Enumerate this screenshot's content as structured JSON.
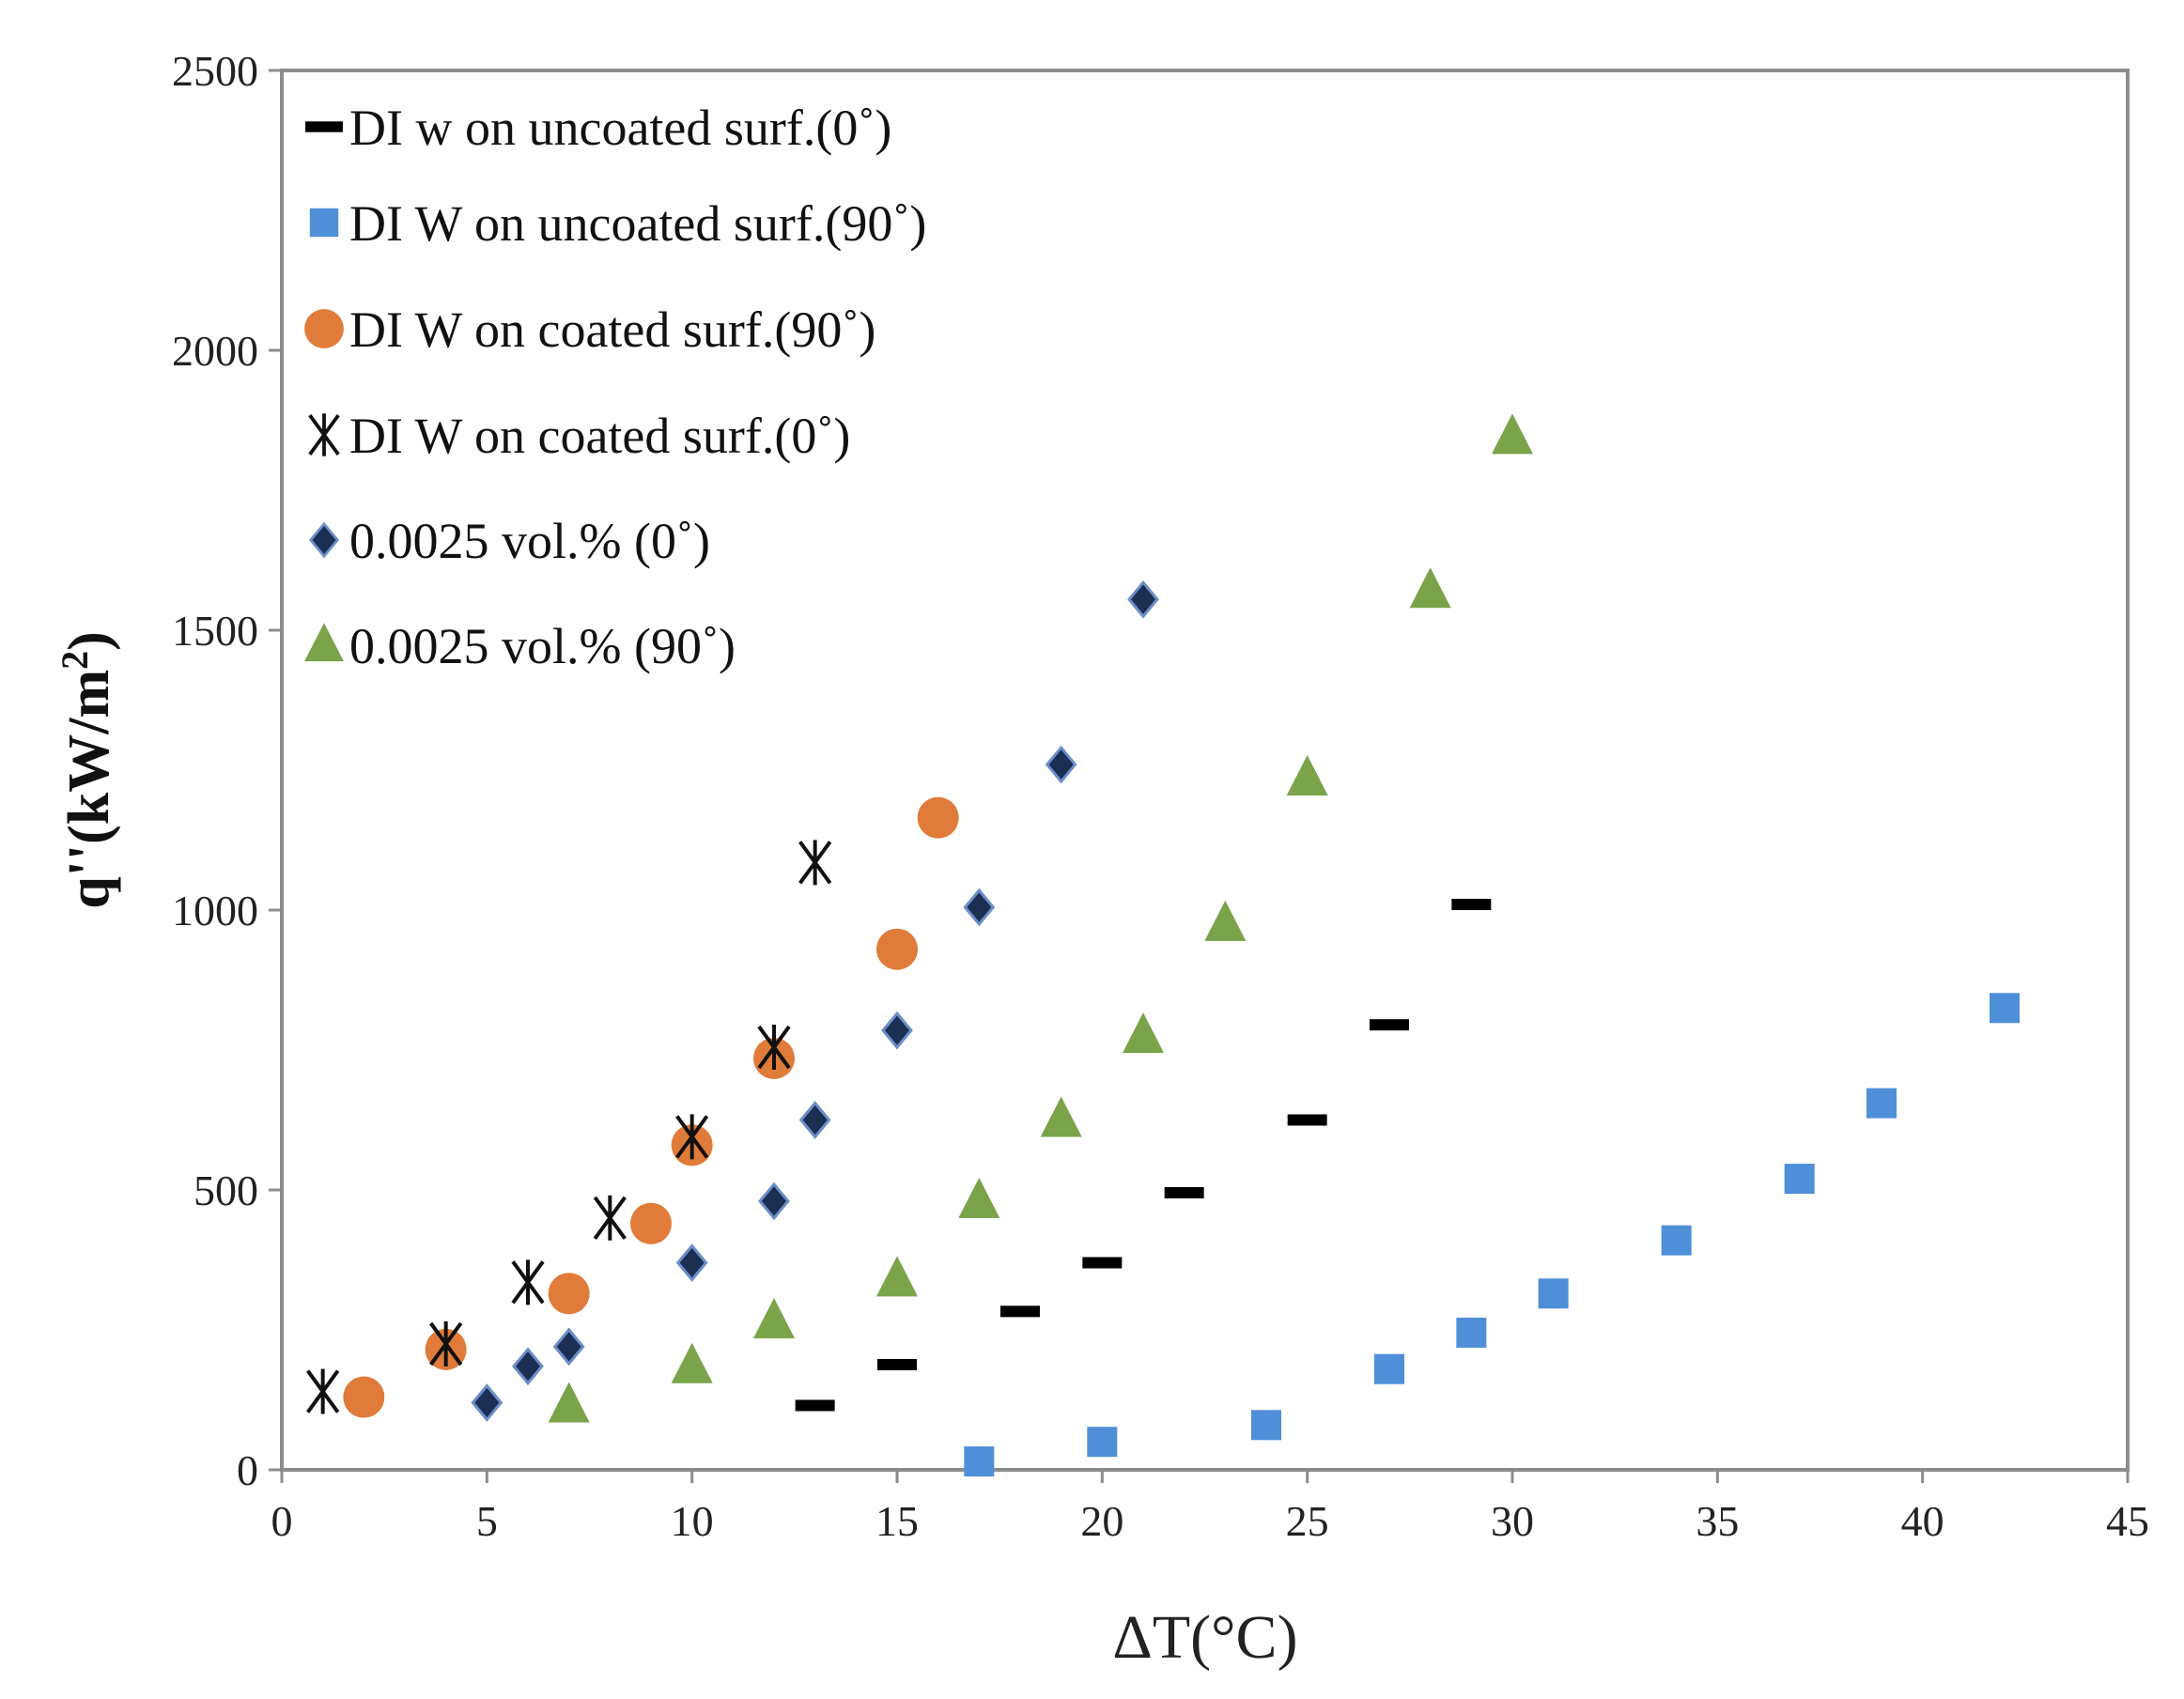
{
  "chart_data": {
    "type": "scatter",
    "title": "",
    "xlabel": "ΔT(°C)",
    "ylabel_main": "q''(kW/m",
    "ylabel_sup": "2",
    "ylabel_close": ")",
    "xlim": [
      0,
      45
    ],
    "ylim": [
      0,
      2500
    ],
    "xticks": [
      0,
      5,
      10,
      15,
      20,
      25,
      30,
      35,
      40,
      45
    ],
    "yticks": [
      0,
      500,
      1000,
      1500,
      2000,
      2500
    ],
    "grid": false,
    "legend_position": "top-left",
    "series": [
      {
        "name": "DI w on uncoated surf.(0˚)",
        "marker": "dash",
        "color": "#000000",
        "x": [
          13,
          15,
          18,
          20,
          22,
          25,
          27,
          29
        ],
        "y": [
          115,
          188,
          283,
          370,
          495,
          625,
          795,
          1010
        ]
      },
      {
        "name": "DI W on uncoated surf.(90˚)",
        "marker": "square",
        "color": "#4e8fd8",
        "x": [
          17,
          20,
          24,
          27,
          29,
          31,
          34,
          37,
          39,
          42
        ],
        "y": [
          15,
          50,
          80,
          180,
          245,
          315,
          410,
          520,
          655,
          825
        ]
      },
      {
        "name": "DI W on coated surf.(90˚)",
        "marker": "circle",
        "color": "#e07b39",
        "x": [
          2,
          4,
          7,
          9,
          10,
          12,
          15,
          16
        ],
        "y": [
          130,
          215,
          315,
          440,
          580,
          735,
          930,
          1165
        ]
      },
      {
        "name": "DI W on coated surf.(0˚)",
        "marker": "asterisk",
        "color": "#111111",
        "x": [
          1,
          4,
          6,
          8,
          10,
          12,
          13
        ],
        "y": [
          140,
          225,
          335,
          450,
          595,
          755,
          1085
        ]
      },
      {
        "name": "0.0025 vol.% (0˚)",
        "marker": "diamond",
        "color": "#1c2f52",
        "x": [
          5,
          6,
          7,
          10,
          12,
          13,
          15,
          17,
          19,
          21
        ],
        "y": [
          120,
          185,
          220,
          370,
          480,
          625,
          785,
          1005,
          1260,
          1555
        ]
      },
      {
        "name": "0.0025 vol.% (90˚)",
        "marker": "triangle",
        "color": "#7aa34a",
        "x": [
          7,
          10,
          12,
          15,
          17,
          19,
          21,
          23,
          25,
          28,
          30
        ],
        "y": [
          115,
          185,
          265,
          340,
          480,
          625,
          775,
          975,
          1235,
          1570,
          1845
        ]
      }
    ]
  }
}
